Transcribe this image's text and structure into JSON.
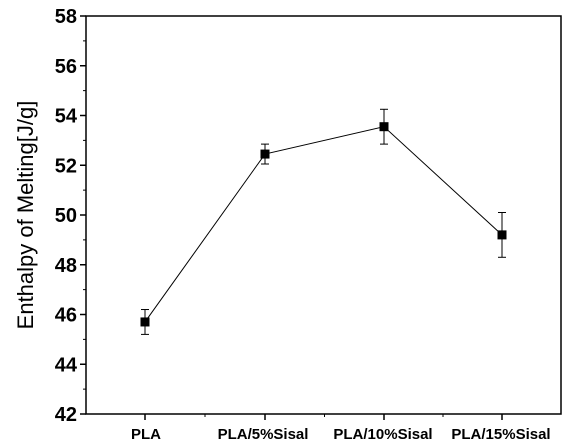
{
  "chart_data": {
    "type": "line",
    "title": "",
    "xlabel": "",
    "ylabel": "Enthalpy of Melting[J/g]",
    "categories": [
      "PLA",
      "PLA/5%Sisal",
      "PLA/10%Sisal",
      "PLA/15%Sisal"
    ],
    "series": [
      {
        "values": [
          45.7,
          52.45,
          53.55,
          49.2
        ],
        "errors": [
          0.5,
          0.4,
          0.7,
          0.9
        ],
        "marker": "square",
        "color": "#000000"
      }
    ],
    "ylim": [
      42,
      58
    ],
    "yticks": [
      42,
      44,
      46,
      48,
      50,
      52,
      54,
      56,
      58
    ],
    "grid": false,
    "legend": "none"
  }
}
